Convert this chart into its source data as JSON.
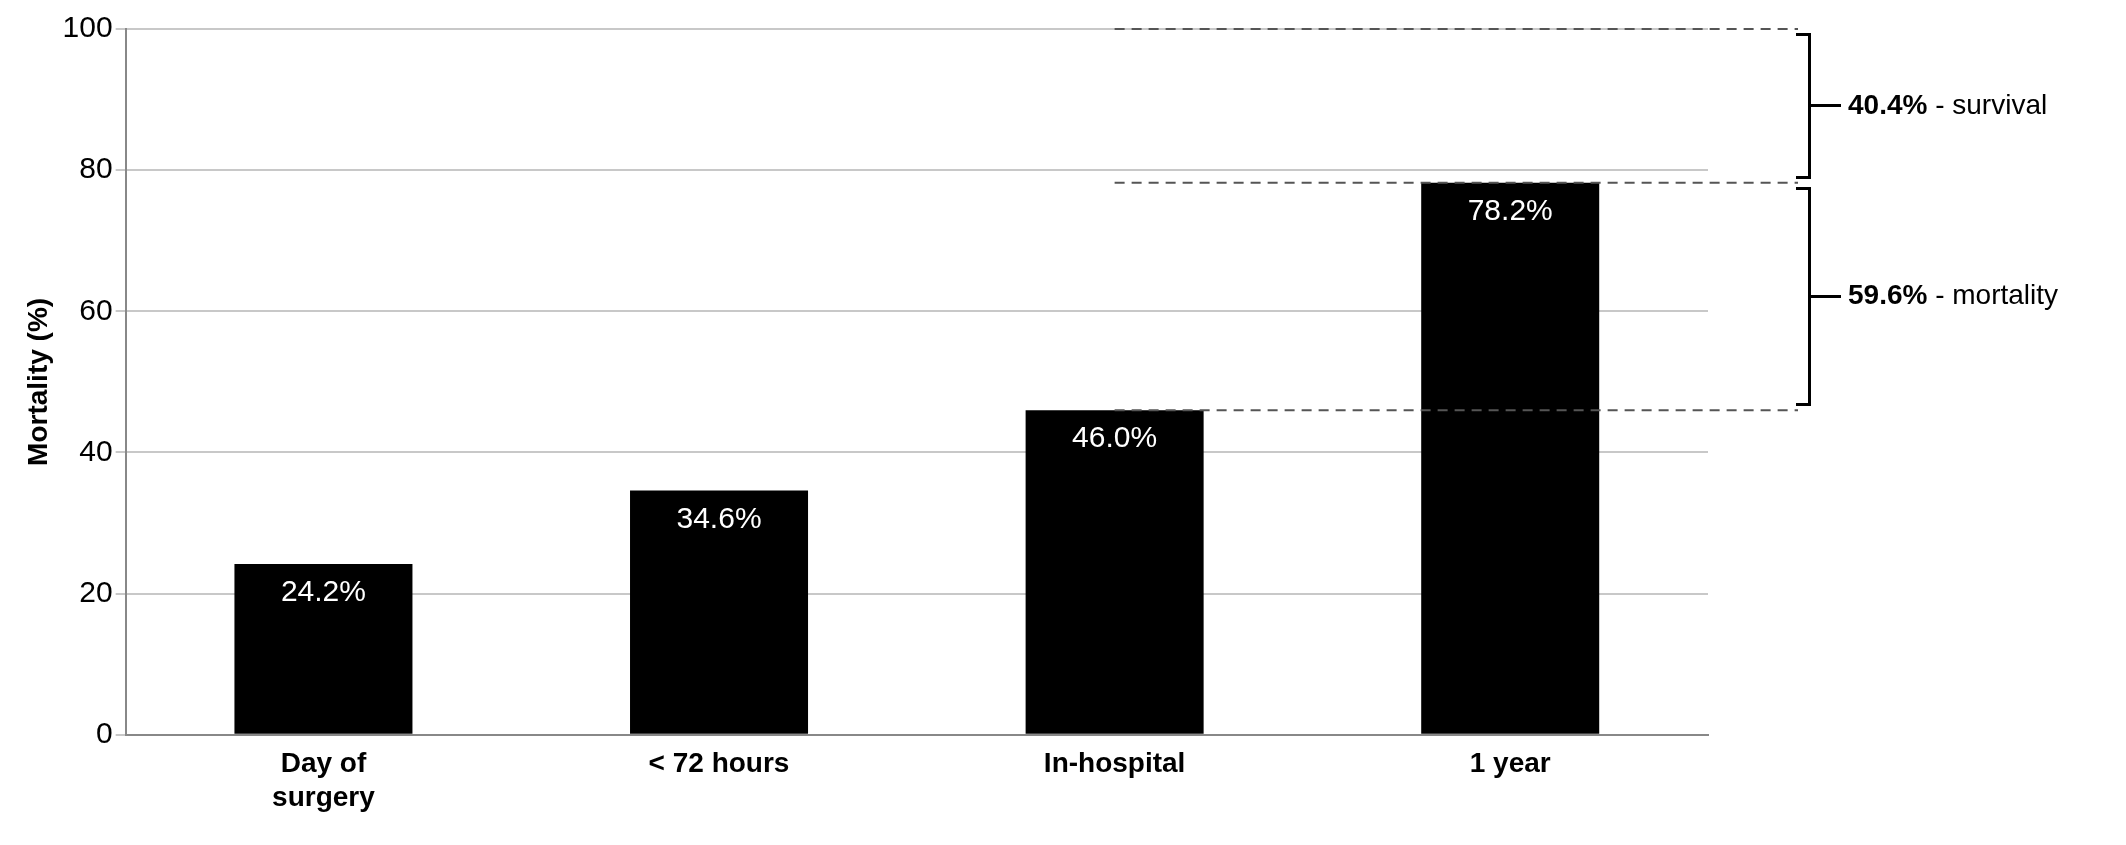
{
  "chart_data": {
    "type": "bar",
    "ylabel": "Mortality (%)",
    "categories": [
      "Day of\nsurgery",
      "< 72 hours",
      "In-hospital",
      "1 year"
    ],
    "values": [
      24.2,
      34.6,
      46.0,
      78.2
    ],
    "color": "#000000",
    "value_labels": [
      "24.2%",
      "34.6%",
      "46.0%",
      "78.2%"
    ],
    "ylim": [
      0,
      100
    ],
    "yticks": [
      0,
      20,
      40,
      60,
      80,
      100
    ],
    "grid": "y",
    "legend": false,
    "ref_lines": [
      {
        "axis": "y",
        "value": 100,
        "line_style": "dashed"
      },
      {
        "axis": "y",
        "value": 78.2,
        "line_style": "dashed"
      },
      {
        "axis": "y",
        "value": 46.0,
        "line_style": "dashed"
      }
    ],
    "annotations": [
      "40.4% - survival",
      "59.6% - mortality"
    ]
  }
}
